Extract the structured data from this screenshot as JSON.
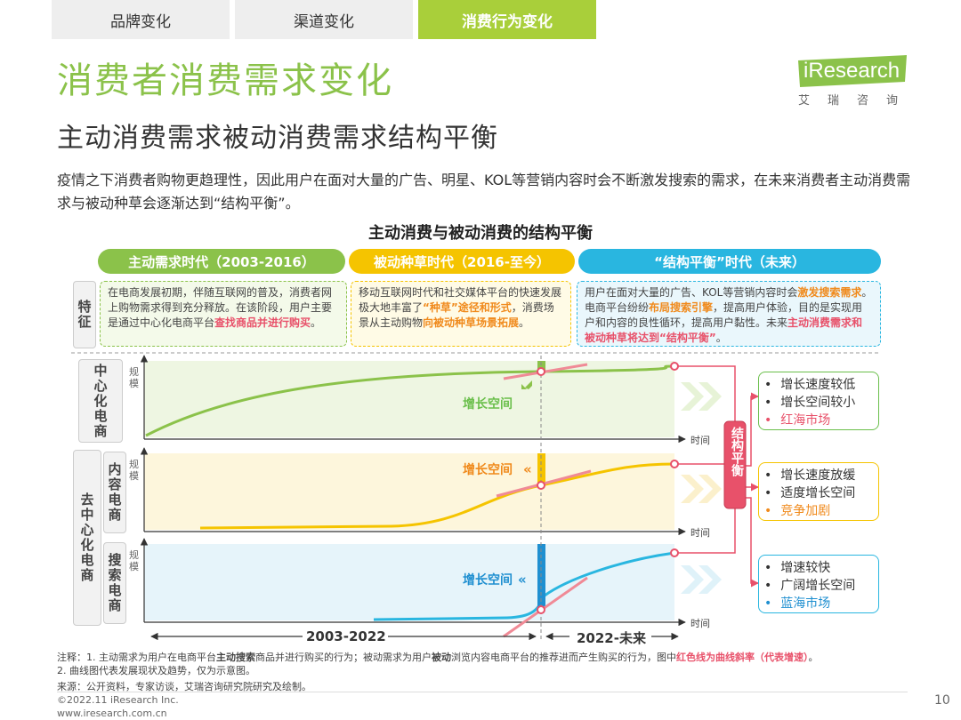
{
  "tabs": [
    {
      "label": "品牌变化"
    },
    {
      "label": "渠道变化"
    },
    {
      "label": "消费行为变化"
    }
  ],
  "title": "消费者消费需求变化",
  "subtitle": "主动消费需求被动消费需求结构平衡",
  "logo": {
    "text": "iResearch",
    "cn": "艾瑞咨询"
  },
  "description": "疫情之下消费者购物更趋理性，因此用户在面对大量的广告、明星、KOL等营销内容时会不断激发搜索的需求，在未来消费者主动消费需求与被动种草会逐渐达到“结构平衡”。",
  "diagram_title": "主动消费与被动消费的结构平衡",
  "eras": [
    {
      "label": "主动需求时代（2003-2016）"
    },
    {
      "label": "被动种草时代（2016-至今）"
    },
    {
      "label": "“结构平衡”时代（未来）"
    }
  ],
  "feature_label": "特征",
  "features": [
    {
      "p1": "在电商发展初期，伴随互联网的普及，消费者网上购物需求得到充分释放。在该阶段，用户主要是通过中心化电商平台",
      "h": "查找商品并进行购买",
      "p2": "。"
    },
    {
      "p1": "移动互联网时代和社交媒体平台的快速发展极大地丰富了",
      "h1": "“种草”途径和形式",
      "p2": "，消费场景从主动购物",
      "h2": "向被动种草场景拓展",
      "p3": "。"
    },
    {
      "p1": "用户在面对大量的广告、KOL等营销内容时会",
      "h1": "激发搜索需求",
      "p2": "。电商平台纷纷",
      "h2": "布局搜索引擎",
      "p3": "，提高用户体验，目的是实现用户和内容的良性循环，提高用户黏性。未来",
      "h3": "主动消费需求和被动种草将达到“结构平衡”",
      "p4": "。"
    }
  ],
  "left_labels": {
    "centralized": "中心化电商",
    "decentralized": "去中心化电商",
    "content": "内容电商",
    "search": "搜索电商"
  },
  "axis": {
    "y": "规模",
    "x": "时间"
  },
  "growth_label": "增长空间",
  "balance_label": "结构平衡",
  "results": [
    {
      "items": [
        {
          "text": "增长速度较低"
        },
        {
          "text": "增长空间较小"
        },
        {
          "text": "红海市场"
        }
      ],
      "color": "#6abf4b",
      "accent": "#e8516a"
    },
    {
      "items": [
        {
          "text": "增长速度放缓"
        },
        {
          "text": "适度增长空间"
        },
        {
          "text": "竞争加剧"
        }
      ],
      "color": "#f5c400",
      "accent": "#f08a1c"
    },
    {
      "items": [
        {
          "text": "增速较快"
        },
        {
          "text": "广阔增长空间"
        },
        {
          "text": "蓝海市场"
        }
      ],
      "color": "#29b6e0",
      "accent": "#1f8fd0"
    }
  ],
  "periods": {
    "past": "2003-2022",
    "future": "2022-未来"
  },
  "notes": {
    "n1a": "注释：1. 主动需求为用户在电商平台",
    "n1b": "主动搜索",
    "n1c": "商品并进行购买的行为；被动需求为用户",
    "n1d": "被动",
    "n1e": "浏览内容电商平台的推荐进而产生购买的行为，图中",
    "n1f": "红色线为曲线斜率（代表增速）",
    "n1g": "。",
    "n2": "2. 曲线图代表发展现状及趋势，仅为示意图。",
    "source": "来源：公开资料，专家访谈，艾瑞咨询研究院研究及绘制。"
  },
  "footer": {
    "copyright": "©2022.11 iResearch Inc.",
    "url": "www.iresearch.com.cn"
  },
  "page_number": "10",
  "colors": {
    "brand": "#8bc24a",
    "green": "#6abf4b",
    "yellow": "#f5c400",
    "blue": "#29b6e0",
    "red": "#e8516a",
    "orange": "#f08a1c"
  }
}
